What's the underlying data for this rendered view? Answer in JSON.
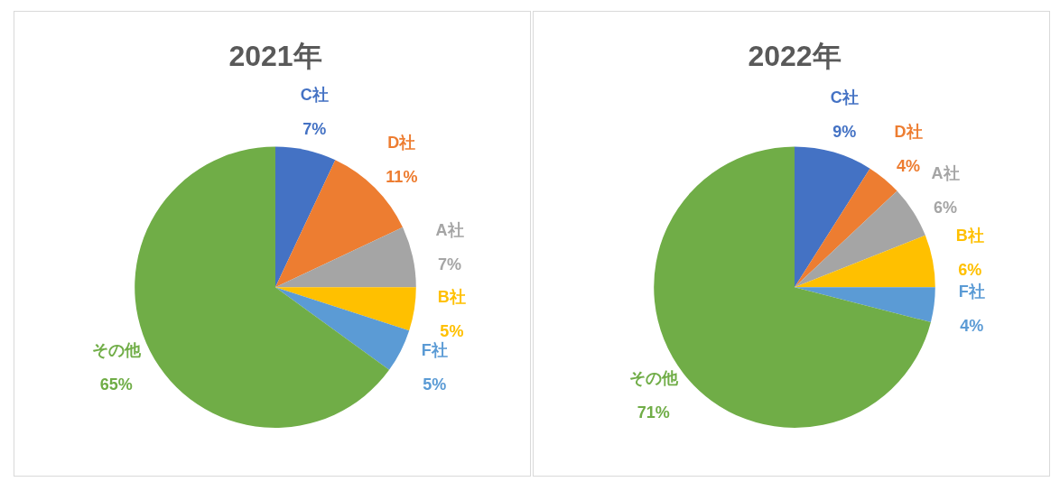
{
  "chart_data": [
    {
      "type": "pie",
      "title": "2021年",
      "categories": [
        "C社",
        "D社",
        "A社",
        "B社",
        "F社",
        "その他"
      ],
      "values": [
        7,
        11,
        7,
        5,
        5,
        65
      ],
      "value_labels": [
        "7%",
        "11%",
        "7%",
        "5%",
        "5%",
        "65%"
      ],
      "colors": [
        "#4472c4",
        "#ed7d31",
        "#a5a5a5",
        "#ffc000",
        "#5b9bd5",
        "#70ad47"
      ]
    },
    {
      "type": "pie",
      "title": "2022年",
      "categories": [
        "C社",
        "D社",
        "A社",
        "B社",
        "F社",
        "その他"
      ],
      "values": [
        9,
        4,
        6,
        6,
        4,
        71
      ],
      "value_labels": [
        "9%",
        "4%",
        "6%",
        "6%",
        "4%",
        "71%"
      ],
      "colors": [
        "#4472c4",
        "#ed7d31",
        "#a5a5a5",
        "#ffc000",
        "#5b9bd5",
        "#70ad47"
      ]
    }
  ]
}
